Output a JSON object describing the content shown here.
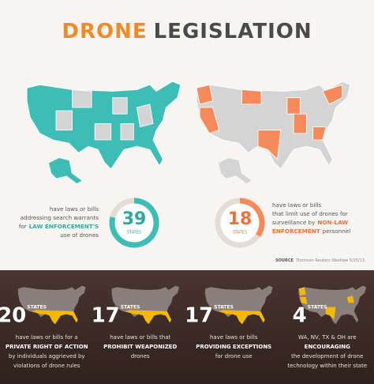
{
  "title": {
    "first": "DRONE",
    "second": "LEGISLATION"
  },
  "left_stat": {
    "number": "39",
    "unit": "STATES",
    "lines": [
      [
        {
          "text": "have laws or bills",
          "emph": false
        }
      ],
      [
        {
          "text": "addressing search warrants",
          "emph": false
        }
      ],
      [
        {
          "text": "for",
          "emph": false
        },
        {
          "text": "LAW ENFORCEMENT'S",
          "emph": true
        }
      ],
      [
        {
          "text": "use of drones",
          "emph": false
        }
      ]
    ]
  },
  "right_stat": {
    "number": "18",
    "unit": "STATES",
    "lines": [
      [
        {
          "text": "have laws or bills",
          "emph": false
        }
      ],
      [
        {
          "text": "that limit use of drones for",
          "emph": false
        }
      ],
      [
        {
          "text": "surveillance by",
          "emph": false
        },
        {
          "text": "NON-LAW",
          "emph": true
        }
      ],
      [
        {
          "text": "ENFORCEMENT",
          "emph": true
        },
        {
          "text": "personnel",
          "emph": false
        }
      ]
    ]
  },
  "source": {
    "label": "SOURCE",
    "text": "Thomson Reuters Westlaw 5/25/13"
  },
  "panels": [
    {
      "number": "20",
      "unit": "STATES",
      "lines": [
        [
          {
            "text": "have laws or bills for a",
            "emph": false
          }
        ],
        [
          {
            "text": "PRIVATE RIGHT OF ACTION",
            "emph": true
          }
        ],
        [
          {
            "text": "by individuals aggrieved by",
            "emph": false
          }
        ],
        [
          {
            "text": "violations of drone rules",
            "emph": false
          }
        ]
      ]
    },
    {
      "number": "17",
      "unit": "STATES",
      "lines": [
        [
          {
            "text": "have laws or bills that",
            "emph": false
          }
        ],
        [
          {
            "text": "PROHIBIT WEAPONIZED",
            "emph": true
          }
        ],
        [
          {
            "text": "drones",
            "emph": false
          }
        ]
      ]
    },
    {
      "number": "17",
      "unit": "STATES",
      "lines": [
        [
          {
            "text": "have laws or bills",
            "emph": false
          }
        ],
        [
          {
            "text": "PROVIDING EXCEPTIONS",
            "emph": true
          }
        ],
        [
          {
            "text": "for drone use",
            "emph": false
          }
        ]
      ]
    },
    {
      "number": "4",
      "unit": "STATES",
      "lines": [
        [
          {
            "text": "WA, NV, TX & OH are",
            "emph": false
          }
        ],
        [
          {
            "text": "ENCOURAGING",
            "emph": true
          }
        ],
        [
          {
            "text": "the development of drone",
            "emph": false
          }
        ],
        [
          {
            "text": "technology within their state",
            "emph": false
          }
        ]
      ]
    }
  ]
}
